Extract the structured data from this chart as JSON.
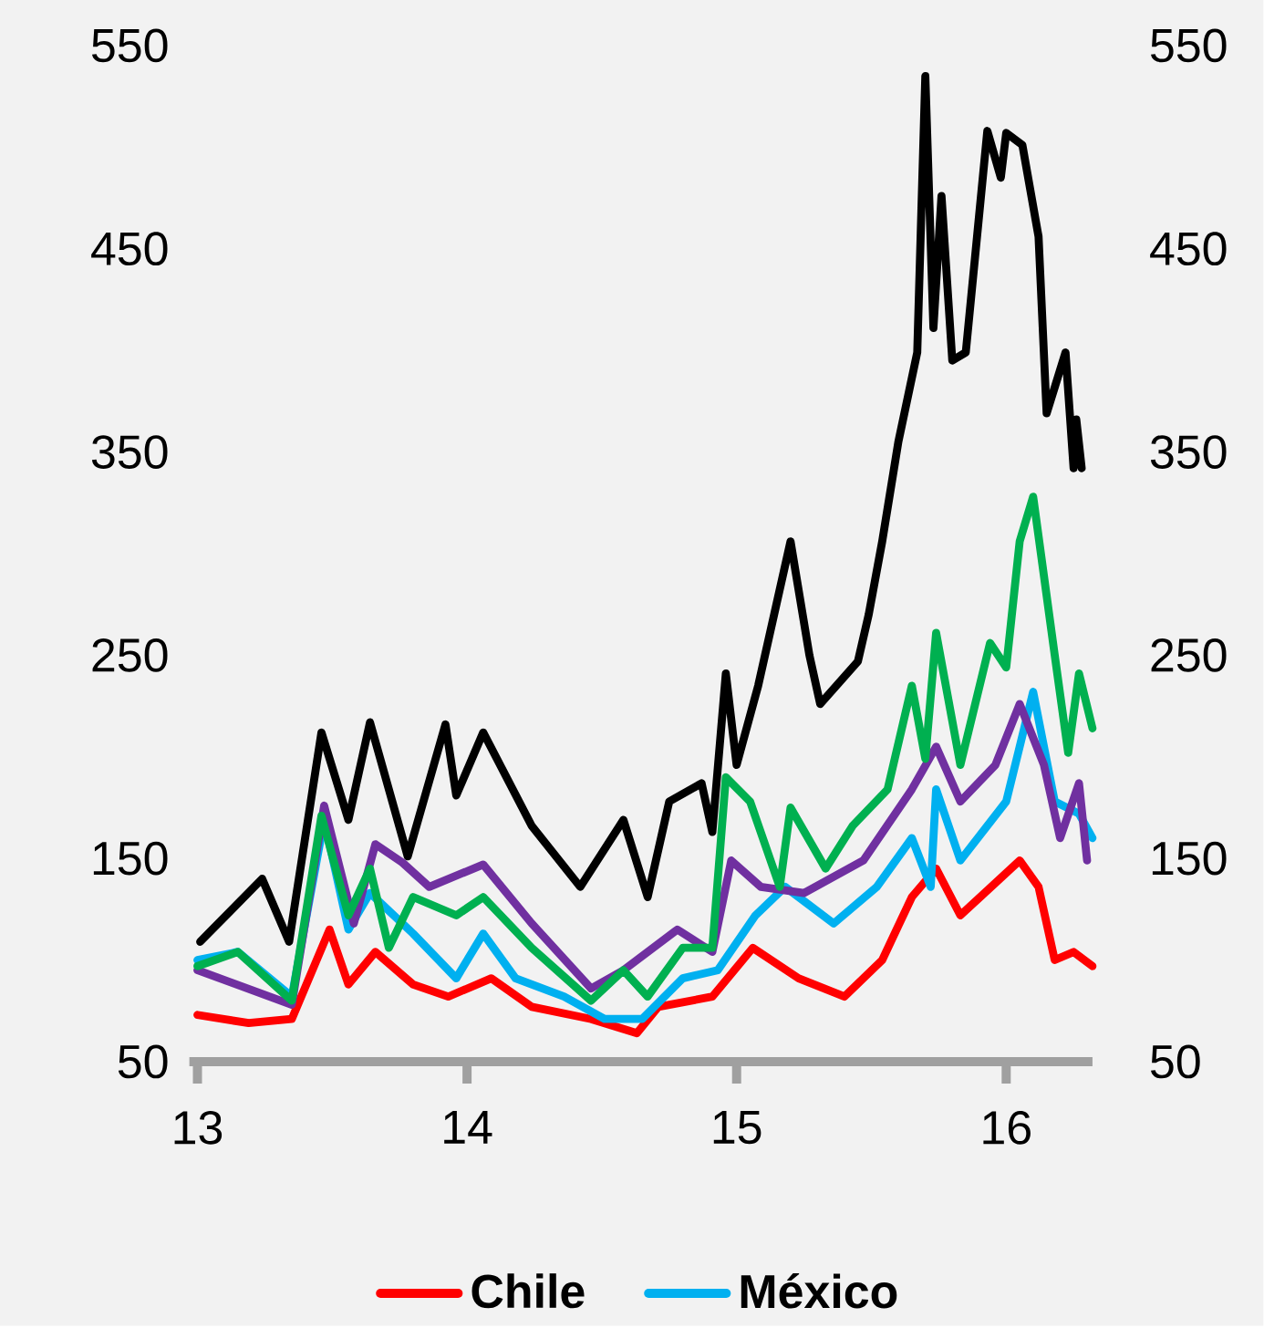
{
  "chart_data": {
    "type": "line",
    "xlim": [
      12.97,
      16.32
    ],
    "xticks": [
      13,
      14,
      15,
      16
    ],
    "ylim": [
      50,
      550
    ],
    "yticks": [
      50,
      150,
      250,
      350,
      450,
      550
    ],
    "y2lim": [
      50,
      550
    ],
    "y2ticks": [
      50,
      150,
      250,
      350,
      450,
      550
    ],
    "legend": "bottom",
    "series": [
      {
        "name": "Chile",
        "color": "#ff0000",
        "x": [
          13.0,
          13.19,
          13.35,
          13.49,
          13.56,
          13.66,
          13.8,
          13.93,
          14.09,
          14.24,
          14.46,
          14.63,
          14.71,
          14.91,
          15.06,
          15.23,
          15.4,
          15.54,
          15.65,
          15.74,
          15.83,
          15.92,
          16.05,
          16.12,
          16.18,
          16.25,
          16.32
        ],
        "values": [
          73,
          69,
          71,
          115,
          88,
          104,
          88,
          82,
          91,
          77,
          71,
          64,
          77,
          82,
          106,
          91,
          82,
          100,
          131,
          145,
          122,
          133,
          149,
          136,
          100,
          104,
          97
        ]
      },
      {
        "name": "México",
        "color": "#00b0f0",
        "x": [
          13.0,
          13.15,
          13.35,
          13.47,
          13.56,
          13.64,
          13.8,
          13.96,
          14.06,
          14.18,
          14.36,
          14.51,
          14.65,
          14.8,
          14.93,
          15.07,
          15.18,
          15.36,
          15.52,
          15.65,
          15.72,
          15.74,
          15.83,
          16.0,
          16.1,
          16.18,
          16.27,
          16.32
        ],
        "values": [
          100,
          104,
          82,
          169,
          115,
          133,
          113,
          91,
          113,
          91,
          82,
          71,
          71,
          91,
          95,
          122,
          136,
          118,
          136,
          160,
          136,
          184,
          149,
          178,
          232,
          178,
          172,
          160
        ]
      },
      {
        "color": "#7030a0",
        "x": [
          13.0,
          13.35,
          13.47,
          13.58,
          13.66,
          13.76,
          13.86,
          14.06,
          14.24,
          14.46,
          14.58,
          14.78,
          14.91,
          14.98,
          15.09,
          15.25,
          15.47,
          15.65,
          15.74,
          15.83,
          15.96,
          16.05,
          16.14,
          16.2,
          16.27,
          16.3
        ],
        "values": [
          95,
          78,
          176,
          118,
          157,
          148,
          136,
          147,
          118,
          86,
          95,
          115,
          104,
          149,
          136,
          133,
          149,
          184,
          205,
          178,
          196,
          226,
          196,
          160,
          187,
          149
        ]
      },
      {
        "color": "#00b050",
        "x": [
          13.0,
          13.15,
          13.35,
          13.46,
          13.56,
          13.64,
          13.71,
          13.8,
          13.96,
          14.06,
          14.24,
          14.46,
          14.58,
          14.67,
          14.8,
          14.91,
          14.96,
          15.05,
          15.16,
          15.2,
          15.33,
          15.43,
          15.56,
          15.65,
          15.7,
          15.74,
          15.83,
          15.94,
          16.0,
          16.05,
          16.1,
          16.18,
          16.23,
          16.27,
          16.32
        ],
        "values": [
          97,
          104,
          80,
          171,
          122,
          145,
          106,
          131,
          122,
          131,
          106,
          80,
          95,
          82,
          106,
          106,
          190,
          178,
          136,
          175,
          145,
          166,
          184,
          235,
          199,
          261,
          196,
          256,
          244,
          306,
          328,
          250,
          202,
          241,
          214
        ]
      },
      {
        "color": "#000000",
        "x": [
          13.01,
          13.24,
          13.34,
          13.46,
          13.56,
          13.64,
          13.78,
          13.92,
          13.96,
          14.06,
          14.24,
          14.42,
          14.58,
          14.67,
          14.75,
          14.87,
          14.91,
          14.96,
          15.0,
          15.08,
          15.2,
          15.27,
          15.31,
          15.45,
          15.49,
          15.54,
          15.6,
          15.67,
          15.7,
          15.73,
          15.76,
          15.8,
          15.85,
          15.93,
          15.98,
          16.0,
          16.06,
          16.12,
          16.15,
          16.22,
          16.25,
          16.26,
          16.28
        ],
        "values": [
          109,
          140,
          109,
          212,
          169,
          217,
          151,
          216,
          181,
          212,
          166,
          136,
          169,
          131,
          178,
          187,
          163,
          241,
          196,
          235,
          306,
          250,
          226,
          247,
          270,
          306,
          355,
          399,
          535,
          411,
          476,
          395,
          399,
          508,
          485,
          507,
          501,
          456,
          369,
          399,
          342,
          366,
          342
        ]
      }
    ]
  }
}
